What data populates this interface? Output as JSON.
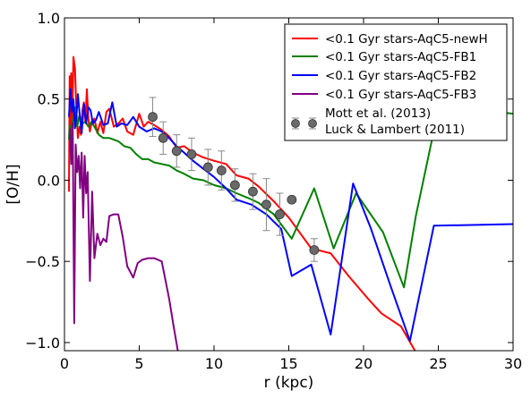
{
  "chart_data": {
    "type": "line",
    "xlabel": "r (kpc)",
    "ylabel": "[O/H]",
    "xlim": [
      0,
      30
    ],
    "ylim": [
      -1.05,
      1.0
    ],
    "xticks": [
      0,
      5,
      10,
      15,
      20,
      25,
      30
    ],
    "yticks": [
      -1.0,
      -0.5,
      0.0,
      0.5,
      1.0
    ],
    "xtick_labels": [
      "0",
      "5",
      "10",
      "15",
      "20",
      "25",
      "30"
    ],
    "ytick_labels": [
      "−1.0",
      "−0.5",
      "0.0",
      "0.5",
      "1.0"
    ],
    "grid": false,
    "legend_position": "upper right",
    "series": [
      {
        "name": "<0.1 Gyr stars-AqC5-newH",
        "color": "#ff0000",
        "x": [
          0.3,
          0.35,
          0.4,
          0.45,
          0.5,
          0.6,
          0.7,
          0.8,
          0.9,
          1.0,
          1.1,
          1.2,
          1.3,
          1.4,
          1.5,
          1.6,
          1.7,
          1.8,
          2.0,
          2.2,
          2.4,
          2.6,
          2.8,
          3.0,
          3.3,
          3.6,
          3.9,
          4.2,
          4.6,
          5.0,
          5.3,
          5.6,
          6.0,
          6.5,
          7.0,
          7.5,
          8.0,
          8.6,
          9.3,
          10.0,
          10.8,
          11.5,
          12.3,
          13.0,
          14.0,
          15.0,
          16.5,
          17.8,
          19.0,
          20.3,
          21.2,
          22.5,
          23.5
        ],
        "y": [
          -0.07,
          0.64,
          0.3,
          0.66,
          0.22,
          0.76,
          0.69,
          0.42,
          0.26,
          0.33,
          0.28,
          0.43,
          0.48,
          0.36,
          0.56,
          0.38,
          0.3,
          0.35,
          0.38,
          0.29,
          0.36,
          0.29,
          0.42,
          0.44,
          0.33,
          0.35,
          0.38,
          0.3,
          0.28,
          0.41,
          0.33,
          0.36,
          0.34,
          0.31,
          0.27,
          0.2,
          0.21,
          0.17,
          0.14,
          0.12,
          0.1,
          0.03,
          0.01,
          -0.04,
          -0.13,
          -0.23,
          -0.42,
          -0.45,
          -0.59,
          -0.73,
          -0.82,
          -0.9,
          -1.06
        ]
      },
      {
        "name": "<0.1 Gyr stars-AqC5-FB1",
        "color": "#008000",
        "x": [
          0.3,
          0.35,
          0.45,
          0.55,
          0.7,
          0.85,
          1.0,
          1.2,
          1.4,
          1.6,
          1.8,
          2.0,
          2.3,
          2.6,
          3.0,
          3.3,
          3.6,
          4.0,
          4.4,
          4.8,
          5.2,
          5.6,
          6.0,
          6.5,
          7.0,
          7.5,
          8.0,
          8.6,
          9.3,
          10.0,
          10.8,
          11.5,
          12.3,
          13.0,
          14.0,
          15.2,
          16.7,
          18.0,
          19.5,
          21.3,
          22.7,
          23.5,
          24.6,
          25.0,
          25.3,
          30.0
        ],
        "y": [
          0.25,
          0.34,
          0.2,
          0.36,
          0.45,
          0.33,
          0.4,
          0.35,
          0.36,
          0.33,
          0.36,
          0.33,
          0.28,
          0.26,
          0.26,
          0.25,
          0.24,
          0.21,
          0.2,
          0.16,
          0.13,
          0.13,
          0.11,
          0.1,
          0.09,
          0.06,
          0.04,
          0.01,
          0.0,
          -0.03,
          -0.05,
          -0.08,
          -0.11,
          -0.14,
          -0.21,
          -0.36,
          -0.05,
          -0.42,
          -0.08,
          -0.32,
          -0.66,
          -0.22,
          0.26,
          0.41,
          0.46,
          0.41
        ]
      },
      {
        "name": "<0.1 Gyr stars-AqC5-FB2",
        "color": "#0000ff",
        "x": [
          0.3,
          0.4,
          0.5,
          0.6,
          0.7,
          0.8,
          0.9,
          1.0,
          1.15,
          1.3,
          1.45,
          1.6,
          1.75,
          1.9,
          2.1,
          2.3,
          2.6,
          2.9,
          3.2,
          3.5,
          3.8,
          4.2,
          4.6,
          5.0,
          5.5,
          6.0,
          6.5,
          7.0,
          7.5,
          8.0,
          8.6,
          9.3,
          10.0,
          10.8,
          11.5,
          12.5,
          13.5,
          14.5,
          15.2,
          16.5,
          17.8,
          18.5,
          19.3,
          20.5,
          21.8,
          23.1,
          24.7,
          30.0
        ],
        "y": [
          0.39,
          0.56,
          0.42,
          0.5,
          0.32,
          0.4,
          0.53,
          0.42,
          0.29,
          0.47,
          0.35,
          0.45,
          0.43,
          0.35,
          0.37,
          0.42,
          0.34,
          0.35,
          0.48,
          0.33,
          0.35,
          0.34,
          0.39,
          0.33,
          0.3,
          0.32,
          0.3,
          0.26,
          0.21,
          0.17,
          0.12,
          0.07,
          0.02,
          -0.05,
          -0.12,
          -0.15,
          -0.21,
          -0.3,
          -0.59,
          -0.52,
          -0.95,
          -0.52,
          -0.02,
          -0.3,
          -0.65,
          -0.99,
          -0.28,
          -0.27
        ]
      },
      {
        "name": "<0.1 Gyr stars-AqC5-FB3",
        "color": "#800080",
        "x": [
          0.35,
          0.45,
          0.55,
          0.65,
          0.75,
          0.85,
          0.95,
          1.05,
          1.15,
          1.25,
          1.35,
          1.45,
          1.55,
          1.7,
          1.85,
          2.0,
          2.2,
          2.4,
          2.6,
          2.8,
          3.0,
          3.3,
          3.6,
          3.9,
          4.2,
          4.6,
          4.9,
          5.2,
          5.6,
          6.0,
          6.5,
          7.0,
          7.3,
          7.6
        ],
        "y": [
          0.32,
          0.1,
          0.35,
          -0.88,
          0.22,
          0.05,
          0.15,
          -0.05,
          0.17,
          -0.23,
          0.15,
          -0.08,
          0.05,
          -0.62,
          -0.07,
          -0.48,
          -0.33,
          -0.4,
          -0.36,
          -0.38,
          -0.22,
          -0.21,
          -0.21,
          -0.35,
          -0.53,
          -0.6,
          -0.51,
          -0.49,
          -0.48,
          -0.48,
          -0.5,
          -0.73,
          -0.9,
          -1.06
        ]
      }
    ],
    "observations": {
      "name": "Mott et al. (2013)\nLuck & Lambert (2011)",
      "legend_lines": [
        "Mott et al. (2013)",
        "Luck & Lambert (2011)"
      ],
      "color": "#696969",
      "errorbar_color": "#888888",
      "points": [
        {
          "x": 5.9,
          "y": 0.39,
          "yerr": 0.12
        },
        {
          "x": 6.6,
          "y": 0.26,
          "yerr": 0.1
        },
        {
          "x": 7.5,
          "y": 0.18,
          "yerr": 0.1
        },
        {
          "x": 8.5,
          "y": 0.16,
          "yerr": 0.1
        },
        {
          "x": 9.6,
          "y": 0.08,
          "yerr": 0.11
        },
        {
          "x": 10.5,
          "y": 0.06,
          "yerr": 0.12
        },
        {
          "x": 11.4,
          "y": -0.03,
          "yerr": 0.1
        },
        {
          "x": 12.6,
          "y": -0.07,
          "yerr": 0.11
        },
        {
          "x": 13.5,
          "y": -0.15,
          "yerr": 0.16
        },
        {
          "x": 14.4,
          "y": -0.21,
          "yerr": 0.13
        },
        {
          "x": 15.2,
          "y": -0.12,
          "yerr": 0.0
        },
        {
          "x": 16.7,
          "y": -0.43,
          "yerr": 0.07
        }
      ]
    }
  }
}
